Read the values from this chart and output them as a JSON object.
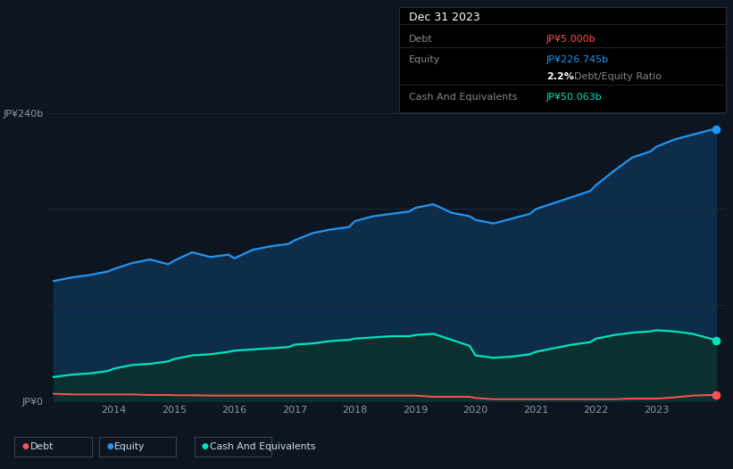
{
  "bg_color": "#0d1520",
  "plot_bg_color": "#0d1520",
  "grid_color": "#1a2a3a",
  "years": [
    2013.0,
    2013.3,
    2013.6,
    2013.9,
    2014.0,
    2014.3,
    2014.6,
    2014.9,
    2015.0,
    2015.3,
    2015.6,
    2015.9,
    2016.0,
    2016.3,
    2016.6,
    2016.9,
    2017.0,
    2017.3,
    2017.6,
    2017.9,
    2018.0,
    2018.3,
    2018.6,
    2018.9,
    2019.0,
    2019.3,
    2019.6,
    2019.9,
    2020.0,
    2020.3,
    2020.6,
    2020.9,
    2021.0,
    2021.3,
    2021.6,
    2021.9,
    2022.0,
    2022.3,
    2022.6,
    2022.9,
    2023.0,
    2023.3,
    2023.6,
    2023.9,
    2023.99
  ],
  "equity": [
    100,
    103,
    105,
    108,
    110,
    115,
    118,
    114,
    117,
    124,
    120,
    122,
    119,
    126,
    129,
    131,
    134,
    140,
    143,
    145,
    150,
    154,
    156,
    158,
    161,
    164,
    157,
    154,
    151,
    148,
    152,
    156,
    160,
    165,
    170,
    175,
    180,
    192,
    203,
    208,
    212,
    218,
    222,
    226,
    226.745
  ],
  "debt": [
    6,
    5.5,
    5.5,
    5.5,
    5.5,
    5.5,
    5,
    5,
    4.8,
    4.8,
    4.5,
    4.5,
    4.5,
    4.5,
    4.5,
    4.5,
    4.5,
    4.5,
    4.5,
    4.5,
    4.5,
    4.5,
    4.5,
    4.5,
    4.5,
    3.5,
    3.5,
    3.5,
    2.5,
    1.5,
    1.5,
    1.5,
    1.5,
    1.5,
    1.5,
    1.5,
    1.5,
    1.5,
    2,
    2,
    2,
    3,
    4.5,
    5,
    5.0
  ],
  "cash": [
    20,
    22,
    23,
    25,
    27,
    30,
    31,
    33,
    35,
    38,
    39,
    41,
    42,
    43,
    44,
    45,
    47,
    48,
    50,
    51,
    52,
    53,
    54,
    54,
    55,
    56,
    51,
    46,
    38,
    36,
    37,
    39,
    41,
    44,
    47,
    49,
    52,
    55,
    57,
    58,
    59,
    58,
    56,
    52,
    50.063
  ],
  "equity_color": "#2196f3",
  "debt_color": "#ff5252",
  "cash_color": "#00e5c0",
  "equity_fill_color": "#0d2d4a",
  "cash_fill_color": "#0a3030",
  "ylim": [
    0,
    260
  ],
  "ytick_vals": [
    0,
    80,
    160,
    240
  ],
  "xtick_vals": [
    2014,
    2015,
    2016,
    2017,
    2018,
    2019,
    2020,
    2021,
    2022,
    2023
  ],
  "xmin": 2012.9,
  "xmax": 2024.15,
  "tooltip": {
    "date": "Dec 31 2023",
    "debt_label": "Debt",
    "debt_val": "JP¥5.000b",
    "equity_label": "Equity",
    "equity_val": "JP¥226.745b",
    "ratio_val": "2.2%",
    "ratio_label": "Debt/Equity Ratio",
    "cash_label": "Cash And Equivalents",
    "cash_val": "JP¥50.063b"
  },
  "legend_items": [
    {
      "label": "Debt",
      "color": "#ff5252"
    },
    {
      "label": "Equity",
      "color": "#2196f3"
    },
    {
      "label": "Cash And Equivalents",
      "color": "#00e5c0"
    }
  ],
  "tooltip_bg": "#000000",
  "tooltip_border": "#2a2a2a",
  "col_label": "#888888",
  "col_white": "#ffffff",
  "col_red": "#ff5252",
  "col_blue": "#2196f3",
  "col_teal": "#00e5c0"
}
